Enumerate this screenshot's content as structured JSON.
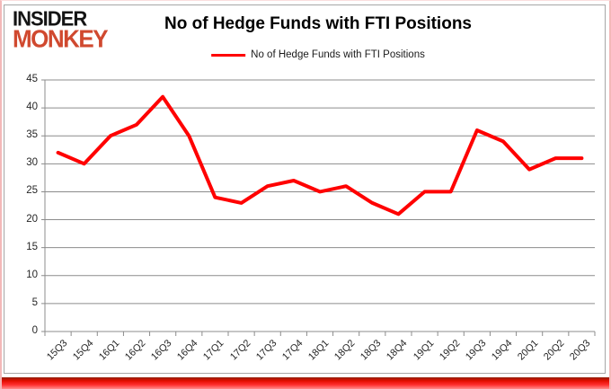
{
  "logo": {
    "line1": "INSIDER",
    "line2": "MONKEY"
  },
  "header": {
    "title": "No of Hedge Funds with FTI Positions"
  },
  "legend": {
    "label": "No of Hedge Funds with FTI Positions"
  },
  "chart_data": {
    "type": "line",
    "title": "No of Hedge Funds with FTI Positions",
    "categories": [
      "15Q3",
      "15Q4",
      "16Q1",
      "16Q2",
      "16Q3",
      "16Q4",
      "17Q1",
      "17Q2",
      "17Q3",
      "17Q4",
      "18Q1",
      "18Q2",
      "18Q3",
      "18Q4",
      "19Q1",
      "19Q2",
      "19Q3",
      "19Q4",
      "20Q1",
      "20Q2",
      "20Q3"
    ],
    "series": [
      {
        "name": "No of Hedge Funds with FTI Positions",
        "values": [
          32,
          30,
          35,
          37,
          42,
          35,
          24,
          23,
          26,
          27,
          25,
          26,
          23,
          21,
          25,
          25,
          36,
          34,
          29,
          31,
          31
        ]
      }
    ],
    "xlabel": "",
    "ylabel": "",
    "ylim": [
      0,
      45
    ],
    "yticks": [
      0,
      5,
      10,
      15,
      20,
      25,
      30,
      35,
      40,
      45
    ],
    "grid": true,
    "legend_position": "top-center",
    "line_color": "#ff0000"
  },
  "colors": {
    "series_red": "#ff0000",
    "logo_red": "#d0492f",
    "logo_black": "#141414",
    "gridline_gray": "#8c8c8c",
    "axis_text": "#262626",
    "frame_gray": "#a6a6a6",
    "page_border_pink": "#f3b9b9"
  }
}
